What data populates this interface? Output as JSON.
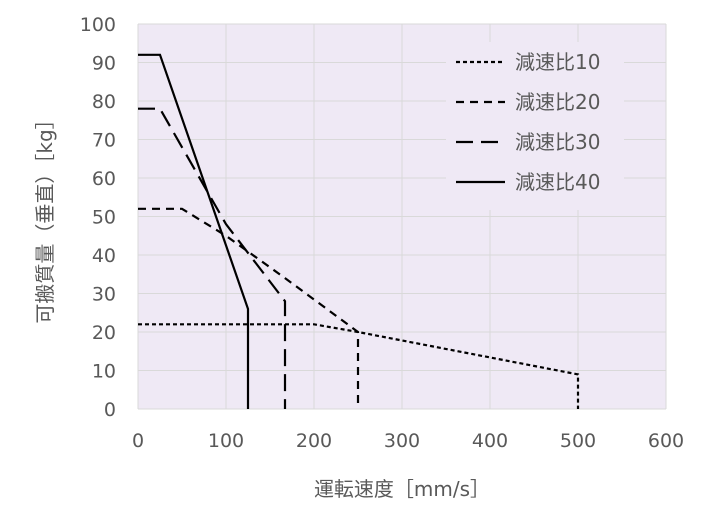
{
  "chart_data": {
    "type": "line",
    "title": "",
    "xlabel": "運転速度［mm/s］",
    "ylabel": "可搬質量（垂直）［kg］",
    "xlim": [
      0,
      600
    ],
    "ylim": [
      0,
      100
    ],
    "xticks": [
      0,
      100,
      200,
      300,
      400,
      500,
      600
    ],
    "yticks": [
      0,
      10,
      20,
      30,
      40,
      50,
      60,
      70,
      80,
      90,
      100
    ],
    "grid": true,
    "legend_position": "top-right",
    "plot_background": "#EFE9F5",
    "series": [
      {
        "name": "減速比10",
        "style": "dotted",
        "points": [
          [
            0,
            22
          ],
          [
            200,
            22
          ],
          [
            250,
            20
          ],
          [
            500,
            9
          ],
          [
            500,
            0
          ]
        ]
      },
      {
        "name": "減速比20",
        "style": "dashed",
        "points": [
          [
            0,
            52
          ],
          [
            50,
            52
          ],
          [
            100,
            45
          ],
          [
            167,
            34
          ],
          [
            250,
            20
          ],
          [
            250,
            0
          ]
        ]
      },
      {
        "name": "減速比30",
        "style": "long-dash",
        "points": [
          [
            0,
            78
          ],
          [
            25,
            78
          ],
          [
            100,
            48
          ],
          [
            167,
            28
          ],
          [
            167,
            0
          ]
        ]
      },
      {
        "name": "減速比40",
        "style": "solid",
        "points": [
          [
            0,
            92
          ],
          [
            25,
            92
          ],
          [
            125,
            26
          ],
          [
            125,
            0
          ]
        ]
      }
    ]
  }
}
